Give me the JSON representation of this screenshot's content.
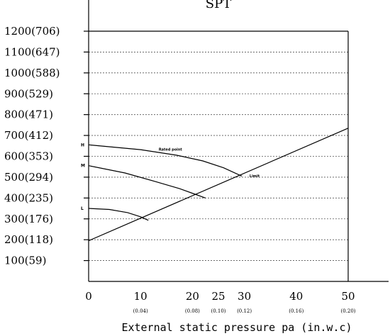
{
  "chart_data": {
    "type": "line",
    "title": "SPT",
    "xlabel": "External static pressure pa  (in.w.c)",
    "ylabel": "",
    "x_ticks": [
      {
        "value": 0,
        "label": "0",
        "sub": ""
      },
      {
        "value": 10,
        "label": "10",
        "sub": "(0.04)"
      },
      {
        "value": 20,
        "label": "20",
        "sub": "(0.08)"
      },
      {
        "value": 25,
        "label": "25",
        "sub": "(0.10)"
      },
      {
        "value": 30,
        "label": "30",
        "sub": "(0.12)"
      },
      {
        "value": 40,
        "label": "40",
        "sub": "(0.16)"
      },
      {
        "value": 50,
        "label": "50",
        "sub": "(0.20)"
      }
    ],
    "y_ticks": [
      {
        "value": 100,
        "label": "100(59)"
      },
      {
        "value": 200,
        "label": "200(118)"
      },
      {
        "value": 300,
        "label": "300(176)"
      },
      {
        "value": 400,
        "label": "400(235)"
      },
      {
        "value": 500,
        "label": "500(294)"
      },
      {
        "value": 600,
        "label": "600(353)"
      },
      {
        "value": 700,
        "label": "700(412)"
      },
      {
        "value": 800,
        "label": "800(471)"
      },
      {
        "value": 900,
        "label": "900(529)"
      },
      {
        "value": 1000,
        "label": "1000(588)"
      },
      {
        "value": 1100,
        "label": "1100(647)"
      },
      {
        "value": 1200,
        "label": "1200(706)"
      }
    ],
    "xlim": [
      0,
      50
    ],
    "ylim": [
      0,
      1200
    ],
    "grid": true,
    "series": [
      {
        "name": "H",
        "x": [
          0,
          10,
          17,
          22,
          26,
          29.5
        ],
        "y": [
          655,
          632,
          605,
          578,
          545,
          505
        ]
      },
      {
        "name": "M",
        "x": [
          0,
          7,
          13,
          17.5,
          20.5,
          22.5
        ],
        "y": [
          555,
          520,
          478,
          445,
          418,
          400
        ]
      },
      {
        "name": "L",
        "x": [
          0,
          4,
          7.5,
          10,
          11.5
        ],
        "y": [
          350,
          345,
          330,
          310,
          293
        ]
      },
      {
        "name": "",
        "x": [
          0,
          50
        ],
        "y": [
          195,
          735
        ]
      }
    ],
    "annotations": [
      {
        "text": "Rated point",
        "x": 13.5,
        "y": 628
      },
      {
        "text": "Limit",
        "x": 31,
        "y": 500
      }
    ]
  }
}
